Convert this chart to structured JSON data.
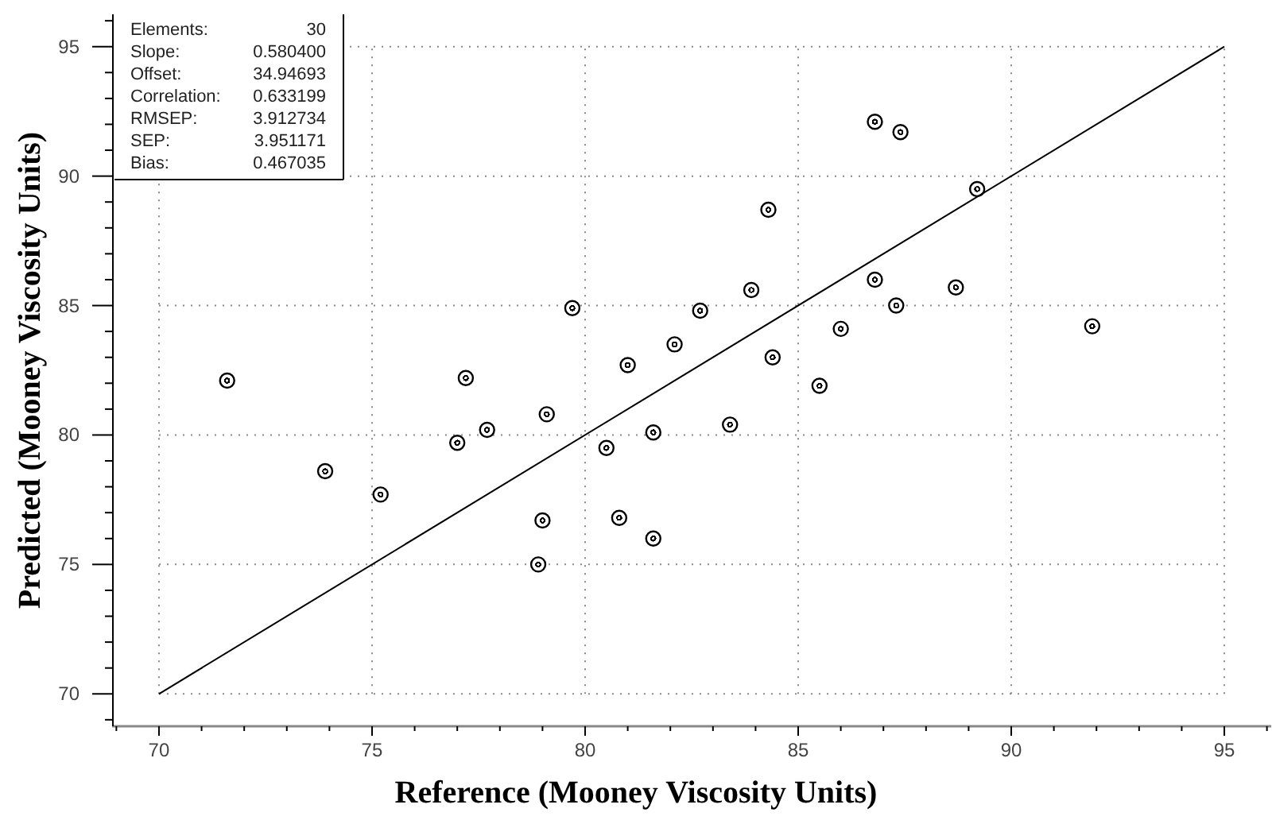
{
  "chart_data": {
    "type": "scatter",
    "xlabel": "Reference (Mooney Viscosity Units)",
    "ylabel": "Predicted (Mooney Viscosity Units)",
    "xlim": [
      68.9,
      96.1
    ],
    "ylim": [
      68.75,
      96.25
    ],
    "xticks": [
      {
        "value": 69,
        "label": null
      },
      70,
      {
        "value": 71,
        "label": null
      },
      {
        "value": 72,
        "label": null
      },
      {
        "value": 73,
        "label": null
      },
      {
        "value": 74,
        "label": null
      },
      75,
      {
        "value": 76,
        "label": null
      },
      {
        "value": 77,
        "label": null
      },
      {
        "value": 78,
        "label": null
      },
      {
        "value": 79,
        "label": null
      },
      80,
      {
        "value": 81,
        "label": null
      },
      {
        "value": 82,
        "label": null
      },
      {
        "value": 83,
        "label": null
      },
      {
        "value": 84,
        "label": null
      },
      85,
      {
        "value": 86,
        "label": null
      },
      {
        "value": 87,
        "label": null
      },
      {
        "value": 88,
        "label": null
      },
      {
        "value": 89,
        "label": null
      },
      90,
      {
        "value": 91,
        "label": null
      },
      {
        "value": 92,
        "label": null
      },
      {
        "value": 93,
        "label": null
      },
      {
        "value": 94,
        "label": null
      },
      95,
      {
        "value": 96,
        "label": null
      }
    ],
    "yticks": [
      {
        "value": 69,
        "label": null
      },
      70,
      {
        "value": 71,
        "label": null
      },
      {
        "value": 72,
        "label": null
      },
      {
        "value": 73,
        "label": null
      },
      {
        "value": 74,
        "label": null
      },
      75,
      {
        "value": 76,
        "label": null
      },
      {
        "value": 77,
        "label": null
      },
      {
        "value": 78,
        "label": null
      },
      {
        "value": 79,
        "label": null
      },
      80,
      {
        "value": 81,
        "label": null
      },
      {
        "value": 82,
        "label": null
      },
      {
        "value": 83,
        "label": null
      },
      {
        "value": 84,
        "label": null
      },
      85,
      {
        "value": 86,
        "label": null
      },
      {
        "value": 87,
        "label": null
      },
      {
        "value": 88,
        "label": null
      },
      {
        "value": 89,
        "label": null
      },
      90,
      {
        "value": 91,
        "label": null
      },
      {
        "value": 92,
        "label": null
      },
      {
        "value": 93,
        "label": null
      },
      {
        "value": 94,
        "label": null
      },
      95,
      {
        "value": 96,
        "label": null
      }
    ],
    "grid": true,
    "marker": "circle",
    "annotations": [
      "Elements: 30",
      "Slope: 0.580400",
      "Offset: 34.94693",
      "Correlation: 0.633199",
      "RMSEP: 3.912734",
      "SEP: 3.951171",
      "Bias: 0.467035"
    ],
    "series": [
      {
        "color": "#000000",
        "x": [
          79.7,
          71.6,
          77.2,
          81.0,
          86.8,
          87.4,
          89.2,
          84.3,
          83.9,
          82.7,
          82.1,
          86.8,
          88.7,
          87.3,
          86.0,
          84.4,
          85.5,
          91.9,
          73.9,
          75.2,
          77.0,
          77.7,
          79.1,
          80.5,
          79.0,
          80.8,
          78.9,
          81.6,
          83.4,
          81.6
        ],
        "values": [
          84.9,
          82.1,
          82.2,
          82.7,
          92.1,
          91.7,
          89.5,
          88.7,
          85.6,
          84.8,
          83.5,
          86.0,
          85.7,
          85.0,
          84.1,
          83.0,
          81.9,
          84.2,
          78.6,
          77.7,
          79.7,
          80.2,
          80.8,
          79.5,
          76.7,
          76.8,
          75.0,
          80.1,
          80.4,
          76.0
        ]
      },
      {
        "type": "line",
        "color": "#000000",
        "marker": "none",
        "x": [
          70,
          95
        ],
        "values": [
          70,
          95
        ]
      }
    ]
  }
}
